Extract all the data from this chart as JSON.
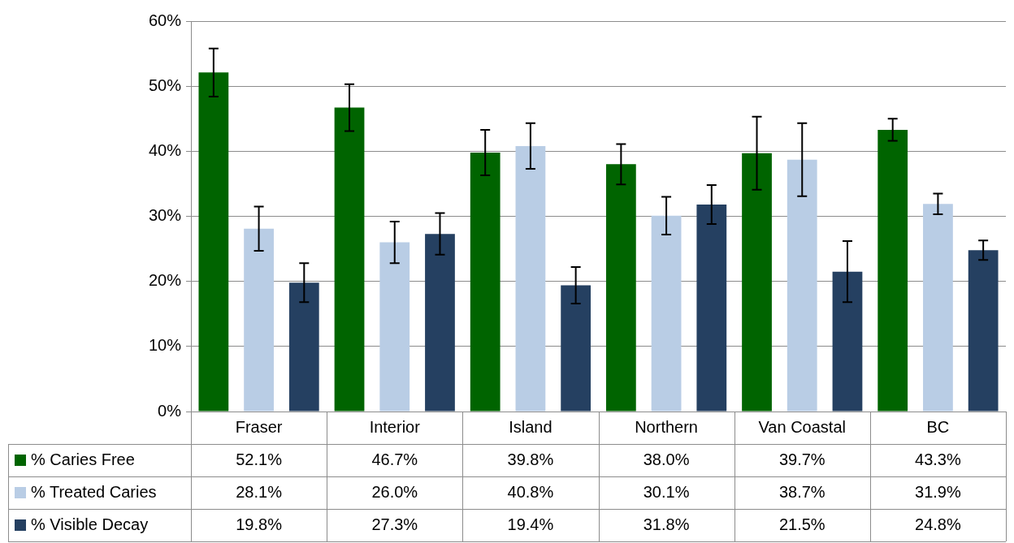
{
  "chart_data": {
    "type": "bar",
    "categories": [
      "Fraser",
      "Interior",
      "Island",
      "Northern",
      "Van Coastal",
      "BC"
    ],
    "series": [
      {
        "name": "% Caries Free",
        "color": "#006400",
        "values": [
          52.1,
          46.7,
          39.8,
          38.0,
          39.7,
          43.3
        ],
        "errors": [
          3.7,
          3.6,
          3.5,
          3.1,
          5.6,
          1.7
        ],
        "value_labels": [
          "52.1%",
          "46.7%",
          "39.8%",
          "38.0%",
          "39.7%",
          "43.3%"
        ]
      },
      {
        "name": "% Treated Caries",
        "color": "#b9cde5",
        "values": [
          28.1,
          26.0,
          40.8,
          30.1,
          38.7,
          31.9
        ],
        "errors": [
          3.4,
          3.2,
          3.5,
          2.9,
          5.6,
          1.6
        ],
        "value_labels": [
          "28.1%",
          "26.0%",
          "40.8%",
          "30.1%",
          "38.7%",
          "31.9%"
        ]
      },
      {
        "name": "% Visible Decay",
        "color": "#254061",
        "values": [
          19.8,
          27.3,
          19.4,
          31.8,
          21.5,
          24.8
        ],
        "errors": [
          3.0,
          3.2,
          2.8,
          3.0,
          4.7,
          1.5
        ],
        "value_labels": [
          "19.8%",
          "27.3%",
          "19.4%",
          "31.8%",
          "21.5%",
          "24.8%"
        ]
      }
    ],
    "ylim": [
      0,
      60
    ],
    "yticks": [
      {
        "value": 0,
        "label": "0%"
      },
      {
        "value": 10,
        "label": "10%"
      },
      {
        "value": 20,
        "label": "20%"
      },
      {
        "value": 30,
        "label": "30%"
      },
      {
        "value": 40,
        "label": "40%"
      },
      {
        "value": 50,
        "label": "50%"
      },
      {
        "value": 60,
        "label": "60%"
      }
    ],
    "grid": "y",
    "legend": "bottom left"
  }
}
